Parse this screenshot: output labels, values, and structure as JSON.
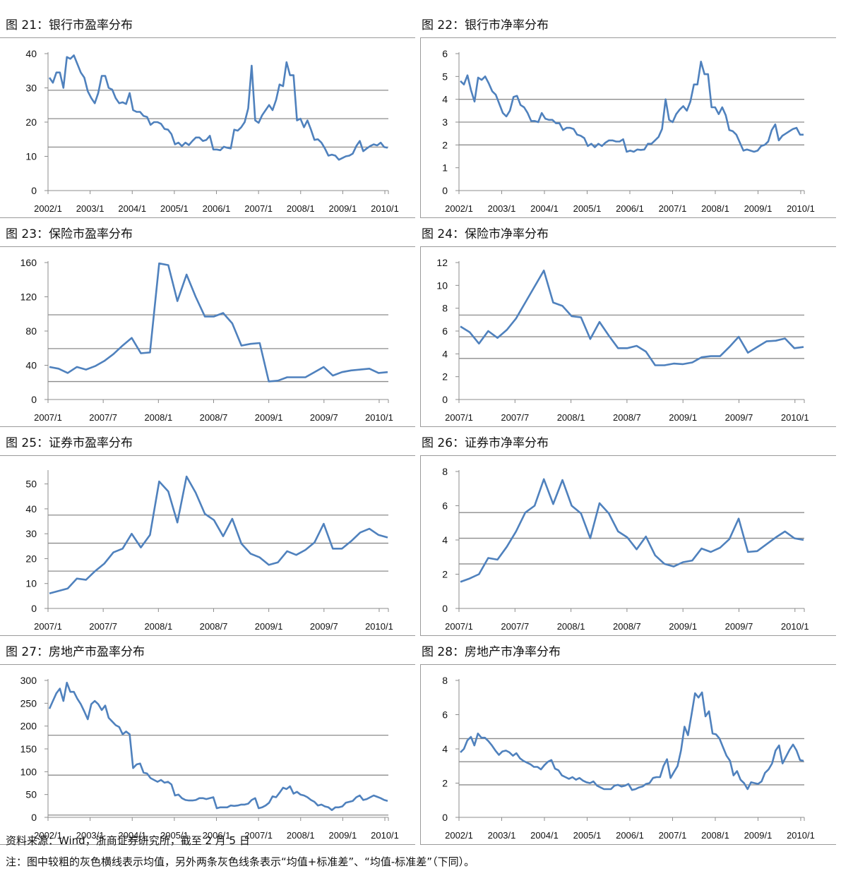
{
  "chart_data": [
    {
      "type": "line",
      "title": "图 21：银行市盈率分布",
      "x_tick_labels": [
        "2002/1",
        "2003/1",
        "2004/1",
        "2005/1",
        "2006/1",
        "2007/1",
        "2008/1",
        "2009/1",
        "2010/1"
      ],
      "y_ticks": [
        0,
        10,
        20,
        30,
        40
      ],
      "ylim": [
        0,
        40
      ],
      "x_start": "2002/1",
      "x_end": "2010/2",
      "grid": "gray horizontal lines at mean and mean ± std",
      "reference_lines": [
        12.7,
        21.0,
        29.3
      ],
      "series": [
        {
          "color": "#4f81bd",
          "values": [
            33,
            31.5,
            34.5,
            34.5,
            30,
            39,
            38.5,
            39.5,
            37,
            34.5,
            33,
            29,
            27,
            25.5,
            28.5,
            33.5,
            33.5,
            30,
            29.5,
            27,
            25.5,
            25.8,
            25.3,
            28.5,
            23.5,
            23,
            23,
            21.8,
            21.5,
            19.2,
            20,
            20,
            19.5,
            18,
            17.8,
            16.5,
            13.5,
            14,
            13,
            14,
            13.3,
            14.5,
            15.5,
            15.5,
            14.5,
            14.8,
            16,
            12,
            12,
            11.8,
            12.8,
            12.5,
            12.3,
            17.8,
            17.5,
            18.5,
            20,
            24,
            36.5,
            20.5,
            19.8,
            22,
            23.5,
            25,
            23.5,
            26.5,
            31,
            30.5,
            37.5,
            33.7,
            33.7,
            20.5,
            21,
            18.5,
            20.5,
            17.8,
            14.8,
            15,
            14,
            12.3,
            10.2,
            10.5,
            10.2,
            9,
            9.5,
            10,
            10.2,
            10.8,
            13,
            14.5,
            11.5,
            12.3,
            13,
            13.5,
            13.2,
            14,
            12.7,
            12.5
          ]
        }
      ]
    },
    {
      "type": "line",
      "title": "图 22：银行市净率分布",
      "x_tick_labels": [
        "2002/1",
        "2003/1",
        "2004/1",
        "2005/1",
        "2006/1",
        "2007/1",
        "2008/1",
        "2009/1",
        "2010/1"
      ],
      "y_ticks": [
        0,
        1,
        2,
        3,
        4,
        5,
        6
      ],
      "ylim": [
        0,
        6
      ],
      "x_start": "2002/1",
      "x_end": "2010/2",
      "grid": "gray horizontal lines at mean and mean ± std",
      "reference_lines": [
        2.0,
        3.0,
        4.0
      ],
      "series": [
        {
          "color": "#4f81bd",
          "values": [
            4.8,
            4.65,
            5.05,
            4.4,
            3.9,
            4.95,
            4.85,
            5.0,
            4.7,
            4.35,
            4.2,
            3.8,
            3.4,
            3.25,
            3.5,
            4.1,
            4.15,
            3.75,
            3.65,
            3.4,
            3.05,
            3.05,
            3.0,
            3.4,
            3.15,
            3.1,
            3.1,
            2.95,
            2.95,
            2.65,
            2.75,
            2.75,
            2.7,
            2.45,
            2.4,
            2.3,
            1.95,
            2.05,
            1.9,
            2.05,
            1.95,
            2.1,
            2.2,
            2.2,
            2.15,
            2.15,
            2.25,
            1.7,
            1.75,
            1.7,
            1.8,
            1.78,
            1.8,
            2.05,
            2.05,
            2.2,
            2.35,
            2.7,
            4.0,
            3.1,
            3.0,
            3.35,
            3.55,
            3.7,
            3.5,
            3.9,
            4.65,
            4.65,
            5.65,
            5.1,
            5.1,
            3.65,
            3.65,
            3.35,
            3.65,
            3.3,
            2.65,
            2.6,
            2.45,
            2.1,
            1.75,
            1.8,
            1.75,
            1.7,
            1.75,
            1.95,
            2.0,
            2.15,
            2.65,
            2.9,
            2.2,
            2.4,
            2.5,
            2.6,
            2.7,
            2.75,
            2.45,
            2.45
          ]
        }
      ]
    },
    {
      "type": "line",
      "title": "图 23：保险市盈率分布",
      "x_tick_labels": [
        "2007/1",
        "2007/7",
        "2008/1",
        "2008/7",
        "2009/1",
        "2009/7",
        "2010/1"
      ],
      "y_ticks": [
        0,
        40,
        80,
        120,
        160
      ],
      "ylim": [
        0,
        160
      ],
      "x_start": "2007/1",
      "x_end": "2010/2",
      "grid": "gray horizontal lines at mean and mean ± std",
      "reference_lines": [
        21,
        59.5,
        99
      ],
      "series": [
        {
          "color": "#4f81bd",
          "values": [
            38,
            36,
            31,
            38,
            35,
            39,
            45,
            53,
            63,
            72,
            54,
            55,
            159,
            157,
            115,
            146,
            120,
            97,
            97,
            101,
            89,
            63,
            65,
            66,
            21,
            22,
            26,
            26,
            26,
            32,
            38,
            28,
            32,
            34,
            35,
            36,
            31,
            32
          ]
        }
      ]
    },
    {
      "type": "line",
      "title": "图 24：保险市净率分布",
      "x_tick_labels": [
        "2007/1",
        "2007/7",
        "2008/1",
        "2008/7",
        "2009/1",
        "2009/7",
        "2010/1"
      ],
      "y_ticks": [
        0,
        2,
        4,
        6,
        8,
        10,
        12
      ],
      "ylim": [
        0,
        12
      ],
      "x_start": "2007/1",
      "x_end": "2010/2",
      "grid": "gray horizontal lines at mean and mean ± std",
      "reference_lines": [
        3.6,
        5.5,
        7.4
      ],
      "series": [
        {
          "color": "#4f81bd",
          "values": [
            6.4,
            5.9,
            4.9,
            6.0,
            5.4,
            6.1,
            7.1,
            8.5,
            9.9,
            11.3,
            8.5,
            8.2,
            7.3,
            7.2,
            5.3,
            6.8,
            5.6,
            4.5,
            4.5,
            4.7,
            4.2,
            3.0,
            3.0,
            3.15,
            3.1,
            3.25,
            3.7,
            3.8,
            3.8,
            4.6,
            5.5,
            4.1,
            4.6,
            5.1,
            5.15,
            5.35,
            4.5,
            4.6
          ]
        }
      ]
    },
    {
      "type": "line",
      "title": "图 25：证券市盈率分布",
      "x_tick_labels": [
        "2007/1",
        "2007/7",
        "2008/1",
        "2008/7",
        "2009/1",
        "2009/7",
        "2010/1"
      ],
      "y_ticks": [
        0,
        10,
        20,
        30,
        40,
        50
      ],
      "ylim": [
        0,
        55
      ],
      "x_start": "2007/1",
      "x_end": "2010/2",
      "grid": "gray horizontal lines at mean and mean ± std",
      "reference_lines": [
        15,
        26.2,
        37.5
      ],
      "series": [
        {
          "color": "#4f81bd",
          "values": [
            6,
            7,
            8,
            12,
            11.5,
            15,
            18,
            22.5,
            24,
            30,
            24.5,
            29.5,
            51,
            47,
            34.5,
            53,
            46.5,
            38,
            35.5,
            29,
            36,
            26,
            22,
            20.5,
            17.5,
            18.5,
            23,
            21.5,
            23.5,
            26.5,
            34,
            24,
            24,
            27,
            30.5,
            32,
            29.5,
            28.5
          ]
        }
      ]
    },
    {
      "type": "line",
      "title": "图 26：证券市净率分布",
      "x_tick_labels": [
        "2007/1",
        "2007/7",
        "2008/1",
        "2008/7",
        "2009/1",
        "2009/7",
        "2010/1"
      ],
      "y_ticks": [
        0,
        2,
        4,
        6,
        8
      ],
      "ylim": [
        0,
        8
      ],
      "x_start": "2007/1",
      "x_end": "2010/2",
      "grid": "gray horizontal lines at mean and mean ± std",
      "reference_lines": [
        2.6,
        4.1,
        5.6
      ],
      "series": [
        {
          "color": "#4f81bd",
          "values": [
            1.55,
            1.75,
            2.0,
            2.95,
            2.85,
            3.6,
            4.5,
            5.6,
            6.0,
            7.55,
            6.1,
            7.5,
            6.0,
            5.55,
            4.1,
            6.15,
            5.55,
            4.5,
            4.15,
            3.45,
            4.2,
            3.1,
            2.6,
            2.45,
            2.7,
            2.8,
            3.5,
            3.3,
            3.55,
            4.05,
            5.25,
            3.3,
            3.35,
            3.75,
            4.15,
            4.5,
            4.1,
            4.0
          ]
        }
      ]
    },
    {
      "type": "line",
      "title": "图 27：房地产市盈率分布",
      "x_tick_labels": [
        "2002/1",
        "2003/1",
        "2004/1",
        "2005/1",
        "2006/1",
        "2007/1",
        "2008/1",
        "2009/1",
        "2010/1"
      ],
      "y_ticks": [
        0,
        50,
        100,
        150,
        200,
        250,
        300
      ],
      "ylim": [
        0,
        300
      ],
      "x_start": "2002/1",
      "x_end": "2010/2",
      "grid": "gray horizontal lines at mean and mean ± std",
      "reference_lines": [
        5,
        92.5,
        180
      ],
      "series": [
        {
          "color": "#4f81bd",
          "values": [
            238,
            255,
            272,
            282,
            255,
            295,
            275,
            275,
            260,
            248,
            232,
            215,
            248,
            255,
            248,
            235,
            245,
            218,
            210,
            202,
            198,
            182,
            188,
            182,
            108,
            116,
            118,
            98,
            96,
            86,
            82,
            78,
            82,
            76,
            78,
            72,
            48,
            50,
            42,
            38,
            37,
            37,
            38,
            42,
            42,
            40,
            42,
            44,
            20,
            22,
            22,
            22,
            26,
            25,
            26,
            28,
            28,
            30,
            38,
            42,
            20,
            22,
            26,
            32,
            46,
            44,
            54,
            65,
            62,
            68,
            52,
            56,
            50,
            48,
            44,
            38,
            34,
            26,
            28,
            24,
            22,
            16,
            22,
            22,
            24,
            32,
            34,
            36,
            44,
            48,
            38,
            40,
            44,
            48,
            45,
            42,
            38,
            36
          ]
        }
      ]
    },
    {
      "type": "line",
      "title": "图 28：房地产市净率分布",
      "x_tick_labels": [
        "2002/1",
        "2003/1",
        "2004/1",
        "2005/1",
        "2006/1",
        "2007/1",
        "2008/1",
        "2009/1",
        "2010/1"
      ],
      "y_ticks": [
        0,
        2,
        4,
        6,
        8
      ],
      "ylim": [
        0,
        8
      ],
      "x_start": "2002/1",
      "x_end": "2010/2",
      "grid": "gray horizontal lines at mean and mean ± std",
      "reference_lines": [
        1.9,
        3.25,
        4.6
      ],
      "series": [
        {
          "color": "#4f81bd",
          "values": [
            3.8,
            4.0,
            4.5,
            4.7,
            4.2,
            4.9,
            4.65,
            4.65,
            4.45,
            4.2,
            3.9,
            3.65,
            3.85,
            3.9,
            3.8,
            3.6,
            3.75,
            3.45,
            3.3,
            3.2,
            3.1,
            2.95,
            2.95,
            2.8,
            3.05,
            3.25,
            3.35,
            2.85,
            2.75,
            2.45,
            2.35,
            2.25,
            2.35,
            2.2,
            2.3,
            2.15,
            2.05,
            2.0,
            2.1,
            1.85,
            1.75,
            1.65,
            1.65,
            1.65,
            1.85,
            1.9,
            1.8,
            1.85,
            1.95,
            1.6,
            1.65,
            1.75,
            1.8,
            1.95,
            2.0,
            2.3,
            2.35,
            2.35,
            3.0,
            3.4,
            2.3,
            2.65,
            3.0,
            3.9,
            5.3,
            4.8,
            6.0,
            7.25,
            7.0,
            7.3,
            5.9,
            6.2,
            4.9,
            4.85,
            4.6,
            4.1,
            3.6,
            3.3,
            2.45,
            2.7,
            2.2,
            2.0,
            1.65,
            2.05,
            2.0,
            1.95,
            2.1,
            2.6,
            2.8,
            3.15,
            3.9,
            4.2,
            3.15,
            3.55,
            3.95,
            4.25,
            3.9,
            3.35,
            3.3
          ]
        }
      ]
    }
  ],
  "footnotes": {
    "source": "资料来源：Wind，浙商证券研究所，截至 2 月 5 日",
    "note": "注：图中较粗的灰色横线表示均值，另外两条灰色线条表示“均值+标准差”、“均值-标准差”（下同）。"
  },
  "colors": {
    "series": "#4f81bd",
    "reference": "#8c8c8c",
    "axis": "#8c8c8c"
  }
}
